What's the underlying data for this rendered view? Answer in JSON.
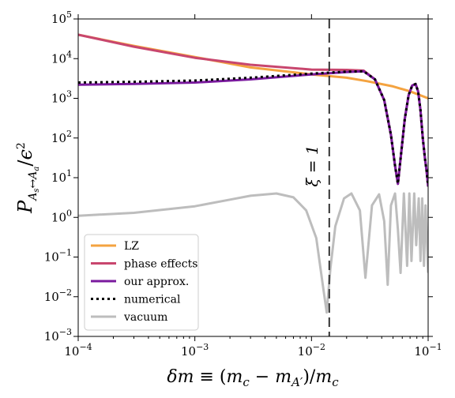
{
  "chart_data": {
    "type": "line",
    "xlabel": "δm ≡ (m_c − m_A′)/m_c",
    "ylabel": "P_{A_s↔A_a}/ε²",
    "xscale": "log",
    "yscale": "log",
    "xlim": [
      0.0001,
      0.1
    ],
    "ylim": [
      0.001,
      100000
    ],
    "x_ticks": [
      {
        "base": "10",
        "exp": "−4",
        "value": 0.0001
      },
      {
        "base": "10",
        "exp": "−3",
        "value": 0.001
      },
      {
        "base": "10",
        "exp": "−2",
        "value": 0.01
      },
      {
        "base": "10",
        "exp": "−1",
        "value": 0.1
      }
    ],
    "y_ticks": [
      {
        "base": "10",
        "exp": "−3",
        "value": 0.001
      },
      {
        "base": "10",
        "exp": "−2",
        "value": 0.01
      },
      {
        "base": "10",
        "exp": "−1",
        "value": 0.1
      },
      {
        "base": "10",
        "exp": "0",
        "value": 1
      },
      {
        "base": "10",
        "exp": "1",
        "value": 10
      },
      {
        "base": "10",
        "exp": "2",
        "value": 100
      },
      {
        "base": "10",
        "exp": "3",
        "value": 1000
      },
      {
        "base": "10",
        "exp": "4",
        "value": 10000
      },
      {
        "base": "10",
        "exp": "5",
        "value": 100000
      }
    ],
    "vline": {
      "x": 0.0142,
      "label": "ξ = 1",
      "color": "#333333"
    },
    "legend_position": "lower-left",
    "grid": false,
    "series": [
      {
        "name": "LZ",
        "color": "#f4a340",
        "style": "solid",
        "x": [
          0.0001,
          0.0003,
          0.001,
          0.003,
          0.01,
          0.02,
          0.03,
          0.05,
          0.07,
          0.1
        ],
        "y": [
          40000,
          21000,
          11000,
          6000,
          4000,
          3300,
          2700,
          2000,
          1500,
          1000
        ]
      },
      {
        "name": "phase effects",
        "color": "#c8466e",
        "style": "solid",
        "x": [
          0.0001,
          0.0003,
          0.001,
          0.003,
          0.01,
          0.02,
          0.028,
          0.035,
          0.042,
          0.048,
          0.052,
          0.055,
          0.058,
          0.063,
          0.068,
          0.073,
          0.078,
          0.082,
          0.086,
          0.09,
          0.094,
          0.097,
          0.1
        ],
        "y": [
          40000,
          20000,
          10500,
          7000,
          5300,
          5200,
          5000,
          3000,
          900,
          120,
          20,
          7,
          30,
          300,
          1200,
          2100,
          2300,
          1500,
          500,
          100,
          30,
          15,
          6
        ]
      },
      {
        "name": "our approx.",
        "color": "#7a1a9e",
        "style": "solid",
        "x": [
          0.0001,
          0.0003,
          0.001,
          0.003,
          0.01,
          0.02,
          0.028,
          0.035,
          0.042,
          0.048,
          0.052,
          0.055,
          0.058,
          0.063,
          0.068,
          0.073,
          0.078,
          0.082,
          0.086,
          0.09,
          0.094,
          0.097,
          0.1
        ],
        "y": [
          2200,
          2300,
          2500,
          3000,
          4000,
          4600,
          4800,
          3000,
          900,
          120,
          20,
          7,
          30,
          300,
          1200,
          2100,
          2300,
          1500,
          500,
          100,
          30,
          15,
          6
        ]
      },
      {
        "name": "numerical",
        "color": "#000000",
        "style": "dotted",
        "x": [
          0.0001,
          0.0003,
          0.001,
          0.003,
          0.01,
          0.02,
          0.028,
          0.035,
          0.042,
          0.048,
          0.052,
          0.055,
          0.058,
          0.063,
          0.068,
          0.073,
          0.078,
          0.082,
          0.086,
          0.09,
          0.094,
          0.097,
          0.1
        ],
        "y": [
          2500,
          2600,
          2800,
          3300,
          4200,
          4700,
          4800,
          3000,
          900,
          120,
          20,
          7,
          30,
          300,
          1200,
          2100,
          2300,
          1500,
          500,
          100,
          30,
          15,
          6
        ]
      },
      {
        "name": "vacuum",
        "color": "#bdbdbd",
        "style": "solid",
        "x": [
          0.0001,
          0.0003,
          0.001,
          0.002,
          0.003,
          0.005,
          0.007,
          0.009,
          0.011,
          0.0125,
          0.0135,
          0.0145,
          0.016,
          0.019,
          0.022,
          0.026,
          0.029,
          0.033,
          0.038,
          0.042,
          0.045,
          0.048,
          0.052,
          0.055,
          0.058,
          0.062,
          0.066,
          0.069,
          0.072,
          0.076,
          0.079,
          0.083,
          0.086,
          0.089,
          0.092,
          0.095,
          0.1
        ],
        "y": [
          1.1,
          1.3,
          1.9,
          2.8,
          3.5,
          4,
          3.2,
          1.5,
          0.3,
          0.02,
          0.004,
          0.05,
          0.6,
          3,
          4,
          1.5,
          0.03,
          2,
          3.8,
          0.8,
          0.02,
          2,
          4,
          0.5,
          0.04,
          4,
          0.06,
          4,
          0.08,
          4,
          0.2,
          3,
          0.08,
          3,
          0.06,
          2,
          0.04
        ]
      }
    ]
  }
}
